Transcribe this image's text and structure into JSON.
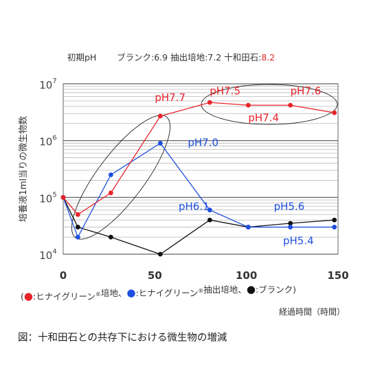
{
  "header": {
    "prefix": "初期pH",
    "conditions": [
      {
        "text": "ブランク:6.9",
        "color": "#333333"
      },
      {
        "text": "抽出培地:7.2",
        "color": "#333333"
      },
      {
        "text": "十和田石:",
        "color": "#333333"
      },
      {
        "text": "8.2",
        "color": "#e8232a"
      }
    ]
  },
  "chart_data": {
    "type": "line",
    "ylabel": "培養液1ml当りの微生物数",
    "xlabel": "経過時間（時間）",
    "y_scale": "log",
    "ylim": [
      10000,
      10000000
    ],
    "xlim": [
      0,
      150
    ],
    "x_ticks": [
      0,
      50,
      100,
      150
    ],
    "y_ticks": [
      {
        "value": 10000,
        "base": "10",
        "exp": "4"
      },
      {
        "value": 100000,
        "base": "10",
        "exp": "5"
      },
      {
        "value": 1000000,
        "base": "10",
        "exp": "6"
      },
      {
        "value": 10000000,
        "base": "10",
        "exp": "7"
      }
    ],
    "grid": "horizontal",
    "series": [
      {
        "color": "#e8232a",
        "x": [
          0,
          8,
          26,
          53,
          80,
          101,
          124,
          148
        ],
        "y": [
          100000,
          50000,
          120000,
          2700000,
          4700000,
          4200000,
          4200000,
          3100000
        ]
      },
      {
        "color": "#1f4fe0",
        "x": [
          0,
          8,
          26,
          53,
          80,
          101,
          124,
          148
        ],
        "y": [
          100000,
          20000,
          250000,
          900000,
          60000,
          30000,
          30000,
          30000
        ]
      },
      {
        "color": "#111111",
        "x": [
          0,
          8,
          26,
          53,
          80,
          101,
          124,
          148
        ],
        "y": [
          100000,
          30000,
          20000,
          10000,
          40000,
          30000,
          35000,
          40000
        ]
      }
    ],
    "annotations": [
      {
        "text": "pH7.7",
        "color": "#e8232a",
        "x": 50,
        "y": 5000000
      },
      {
        "text": "pH7.5",
        "color": "#e8232a",
        "x": 80,
        "y": 6500000
      },
      {
        "text": "pH7.6",
        "color": "#e8232a",
        "x": 124,
        "y": 6500000
      },
      {
        "text": "pH7.4",
        "color": "#e8232a",
        "x": 101,
        "y": 2200000
      },
      {
        "text": "pH7.0",
        "color": "#1f4fe0",
        "x": 68,
        "y": 800000
      },
      {
        "text": "pH6.1",
        "color": "#1f4fe0",
        "x": 63,
        "y": 60000
      },
      {
        "text": "pH5.6",
        "color": "#1f4fe0",
        "x": 115,
        "y": 60000
      },
      {
        "text": "pH5.4",
        "color": "#1f4fe0",
        "x": 120,
        "y": 15000
      }
    ],
    "legend": [
      {
        "dot_color": "#e8232a",
        "text": "ヒナイグリーン",
        "sup": "®",
        "suffix": "培地"
      },
      {
        "dot_color": "#1f4fe0",
        "text": "ヒナイグリーン",
        "sup": "®",
        "suffix": "抽出培地"
      },
      {
        "dot_color": "#111111",
        "text": "ブランク",
        "sup": "",
        "suffix": ""
      }
    ]
  },
  "caption": "図：十和田石との共存下における微生物の増減"
}
